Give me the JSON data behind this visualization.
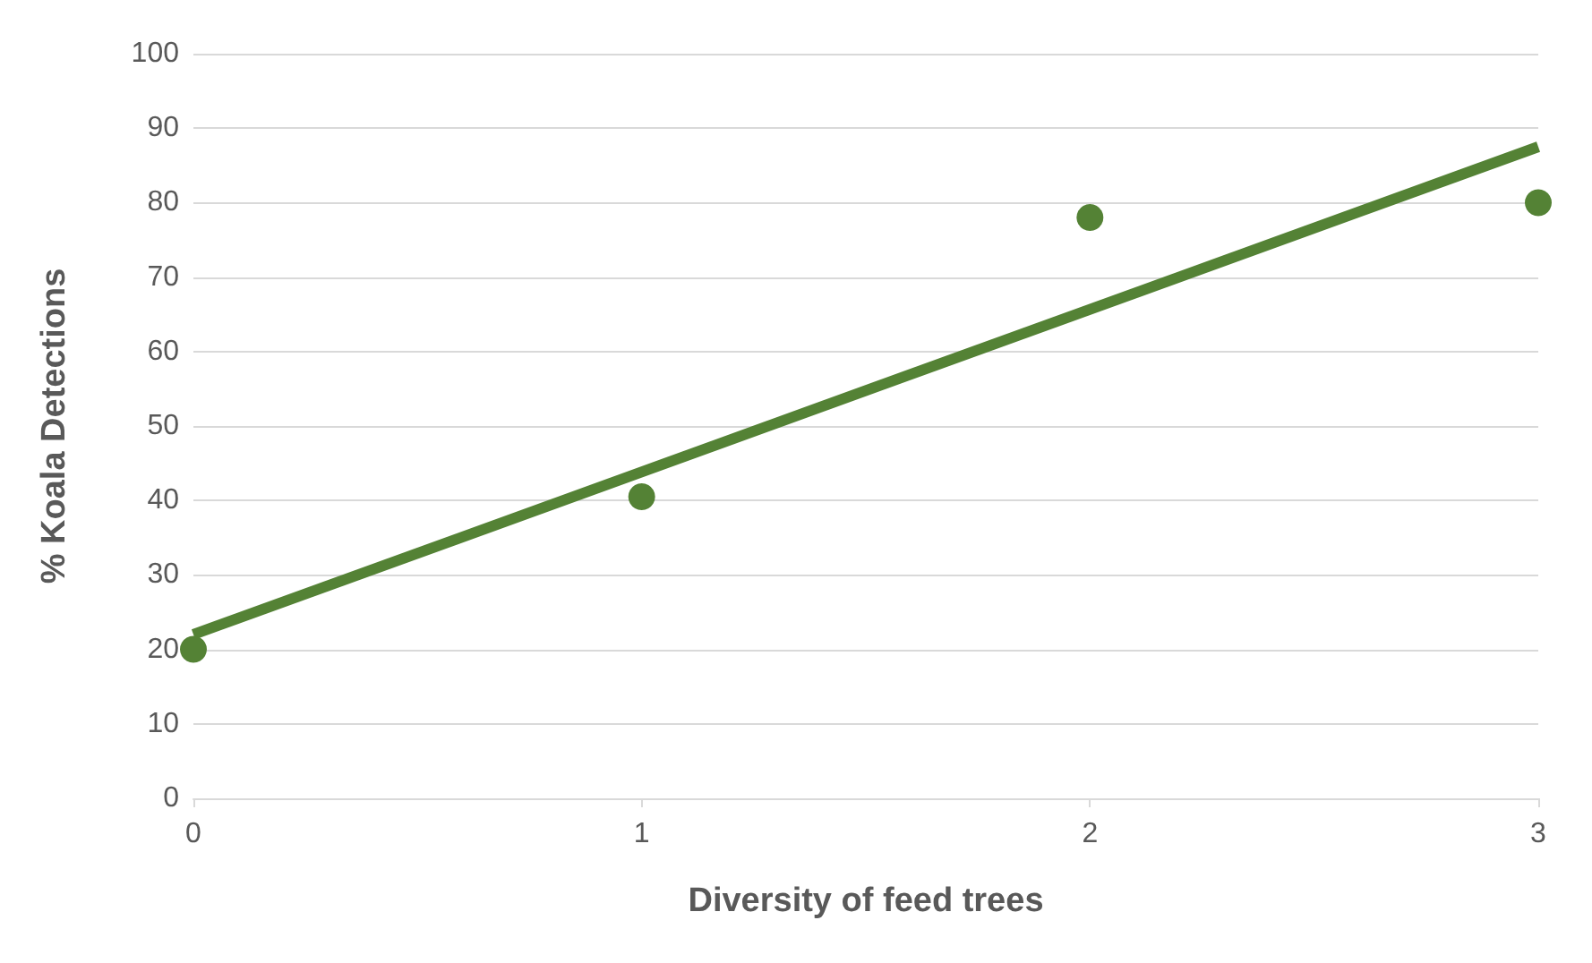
{
  "chart_data": {
    "type": "scatter",
    "xlabel": "Diversity of feed trees",
    "ylabel": "% Koala Detections",
    "series": [
      {
        "color": "#548235",
        "x": [
          0,
          1,
          2,
          3
        ],
        "values": [
          20,
          40.5,
          78,
          80
        ],
        "marker": "circle"
      },
      {
        "type": "line",
        "color": "#548235",
        "x": [
          0,
          3
        ],
        "values": [
          22,
          87.5
        ]
      }
    ],
    "xlim": [
      0,
      3
    ],
    "xticks": [
      0,
      1,
      2,
      3
    ],
    "ylim": [
      0,
      100
    ],
    "yticks": [
      0,
      10,
      20,
      30,
      40,
      50,
      60,
      70,
      80,
      90,
      100
    ],
    "grid": "y"
  }
}
